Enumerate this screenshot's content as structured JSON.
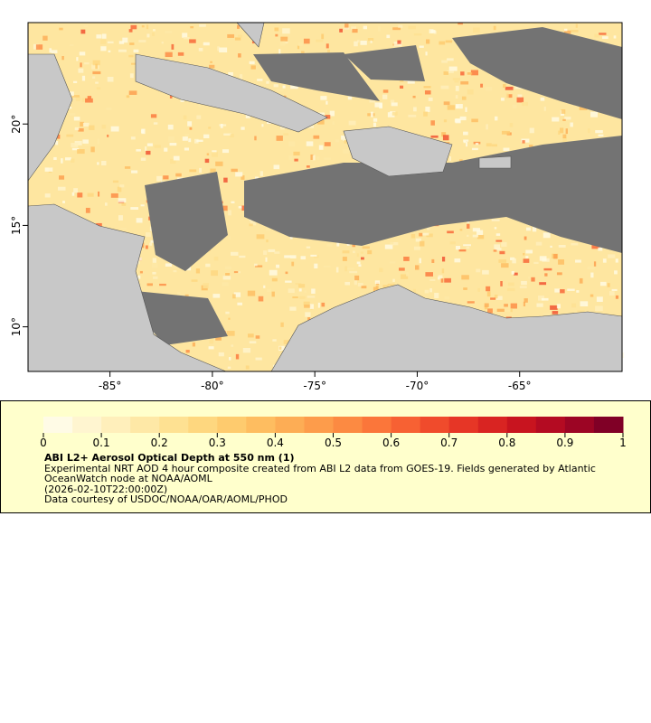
{
  "map": {
    "xlim": [
      -89,
      -60
    ],
    "ylim": [
      7.8,
      25
    ],
    "xticks": [
      {
        "value": -85,
        "label": "-85°"
      },
      {
        "value": -80,
        "label": "-80°"
      },
      {
        "value": -75,
        "label": "-75°"
      },
      {
        "value": -70,
        "label": "-70°"
      },
      {
        "value": -65,
        "label": "-65°"
      }
    ],
    "yticks": [
      {
        "value": 10,
        "label": "10°"
      },
      {
        "value": 15,
        "label": "15°"
      },
      {
        "value": 20,
        "label": "20°"
      }
    ]
  },
  "legend": {
    "colorbar": {
      "range": [
        0,
        1
      ],
      "ticks": [
        0,
        0.1,
        0.2,
        0.3,
        0.4,
        0.5,
        0.6,
        0.7,
        0.8,
        0.9,
        1
      ],
      "colors": [
        "#fffbe6",
        "#fff5d0",
        "#ffefbb",
        "#fee8a6",
        "#fee192",
        "#fed77f",
        "#fecb6e",
        "#febd60",
        "#fdad55",
        "#fd9c4b",
        "#fc8a42",
        "#fb763a",
        "#f76133",
        "#f04b2c",
        "#e63626",
        "#d92422",
        "#c8141f",
        "#b40b22",
        "#9c0524",
        "#800026"
      ]
    },
    "title": "ABI L2+ Aerosol Optical Depth at 550 nm (1)",
    "description": "Experimental NRT AOD 4 hour composite created from ABI L2 data from GOES-19. Fields generated by Atlantic OceanWatch node at NOAA/AOML",
    "time": "(2026-02-10T22:00:00Z)",
    "credit": "Data courtesy of USDOC/NOAA/OAR/AOML/PHOD"
  }
}
